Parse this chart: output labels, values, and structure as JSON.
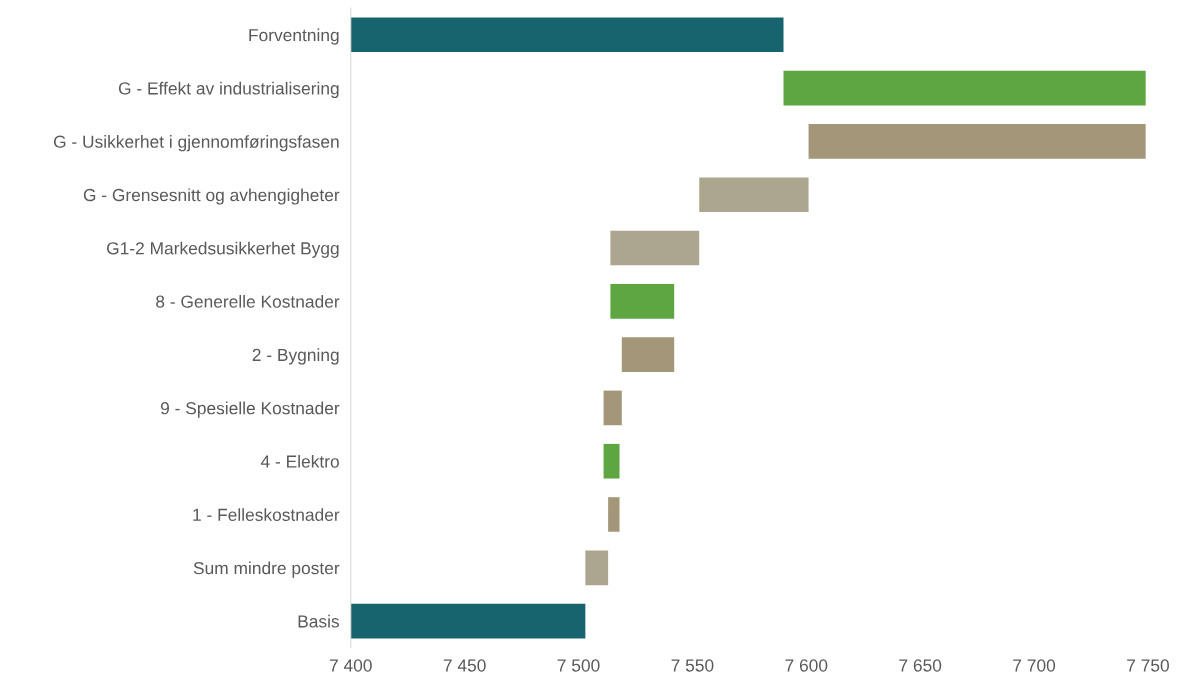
{
  "chart_data": {
    "type": "bar",
    "orientation": "horizontal",
    "categories": [
      "Forventning",
      "G - Effekt av industrialisering",
      "G - Usikkerhet i gjennomføringsfasen",
      "G - Grensesnitt og avhengigheter",
      "G1-2 Markedsusikkerhet Bygg",
      "8 - Generelle Kostnader",
      "2 - Bygning",
      "9 - Spesielle Kostnader",
      "4 - Elektro",
      "1 - Felleskostnader",
      "Sum mindre poster",
      "Basis"
    ],
    "base": [
      7400,
      7590,
      7601,
      7553,
      7514,
      7514,
      7519,
      7511,
      7511,
      7513,
      7503,
      7400
    ],
    "values": [
      190,
      159,
      148,
      48,
      39,
      28,
      23,
      8,
      7,
      5,
      10,
      103
    ],
    "colors": [
      "#17646e",
      "#5ea641",
      "#a39679",
      "#aca58f",
      "#aca58f",
      "#5ea641",
      "#a39679",
      "#a39679",
      "#5ea641",
      "#a39679",
      "#aca58f",
      "#17646e"
    ],
    "xlim": [
      7400,
      7750
    ],
    "xticks": [
      {
        "value": 7400,
        "label": "7 400"
      },
      {
        "value": 7450,
        "label": "7 450"
      },
      {
        "value": 7500,
        "label": "7 500"
      },
      {
        "value": 7550,
        "label": "7 550"
      },
      {
        "value": 7600,
        "label": "7 600"
      },
      {
        "value": 7650,
        "label": "7 650"
      },
      {
        "value": 7700,
        "label": "7 700"
      },
      {
        "value": 7750,
        "label": "7 750"
      }
    ],
    "grid": false,
    "legend": false
  }
}
